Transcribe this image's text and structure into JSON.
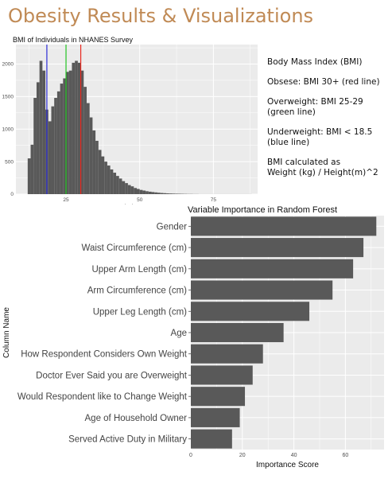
{
  "page": {
    "title": "Obesity Results & Visualizations"
  },
  "notes": {
    "bmi": "Body Mass Index (BMI)",
    "obese": "Obsese: BMI 30+ (red line)",
    "overweight": "Overweight: BMI 25-29  (green line)",
    "underweight": "Underweight: BMI < 18.5 (blue line)",
    "calc_line1": "BMI calculated as",
    "calc_line2": "Weight (kg) / Height(m)^2"
  },
  "colors": {
    "panel_bg": "#ebebeb",
    "grid": "#ffffff",
    "bar": "#595959",
    "obese_line": "#e8271e",
    "overweight_line": "#22c322",
    "underweight_line": "#2b2bd6",
    "title_accent": "#c08a55"
  },
  "chart_data": [
    {
      "type": "bar",
      "subtype": "histogram",
      "title": "BMI of Individuals in NHANES Survey",
      "xlabel": "bmi",
      "ylabel": "",
      "xlim": [
        8,
        90
      ],
      "ylim": [
        0,
        2300
      ],
      "xticks": [
        25,
        50,
        75
      ],
      "yticks": [
        0,
        500,
        1000,
        1500,
        2000
      ],
      "grid": true,
      "reference_lines": [
        {
          "x": 18.5,
          "color": "#2b2bd6"
        },
        {
          "x": 25,
          "color": "#22c322"
        },
        {
          "x": 30,
          "color": "#e8271e"
        }
      ],
      "bin_width": 1,
      "bin_start": 12,
      "counts": [
        550,
        760,
        1480,
        1720,
        2050,
        1900,
        1300,
        1120,
        1350,
        1480,
        1580,
        1700,
        1780,
        1880,
        1900,
        2020,
        2050,
        2020,
        1900,
        1650,
        1400,
        1180,
        980,
        820,
        680,
        580,
        500,
        440,
        380,
        330,
        280,
        240,
        200,
        170,
        140,
        120,
        95,
        80,
        65,
        55,
        45,
        38,
        32,
        27,
        22,
        18,
        15,
        12,
        10,
        8,
        7,
        6,
        5,
        4,
        3,
        3,
        2,
        2,
        1,
        1,
        1,
        1,
        1,
        1,
        1,
        1,
        1,
        1,
        1,
        1,
        1,
        1,
        1,
        1,
        1,
        1
      ]
    },
    {
      "type": "bar",
      "orientation": "horizontal",
      "title": "Variable Importance in Random Forest",
      "xlabel": "Importance Score",
      "ylabel": "Column Name",
      "xlim": [
        0,
        75
      ],
      "xticks": [
        0,
        20,
        40,
        60
      ],
      "grid": true,
      "categories": [
        "Gender",
        "Waist Circumference (cm)",
        "Upper Arm Length (cm)",
        "Arm Circumference (cm)",
        "Upper Leg Length (cm)",
        "Age",
        "How Respondent Considers Own Weight",
        "Doctor Ever Said you are Overweight",
        "Would Respondent like to Change Weight",
        "Age of Household Owner",
        "Served Active Duty in Military"
      ],
      "values": [
        72,
        67,
        63,
        55,
        46,
        36,
        28,
        24,
        21,
        19,
        16
      ]
    }
  ]
}
